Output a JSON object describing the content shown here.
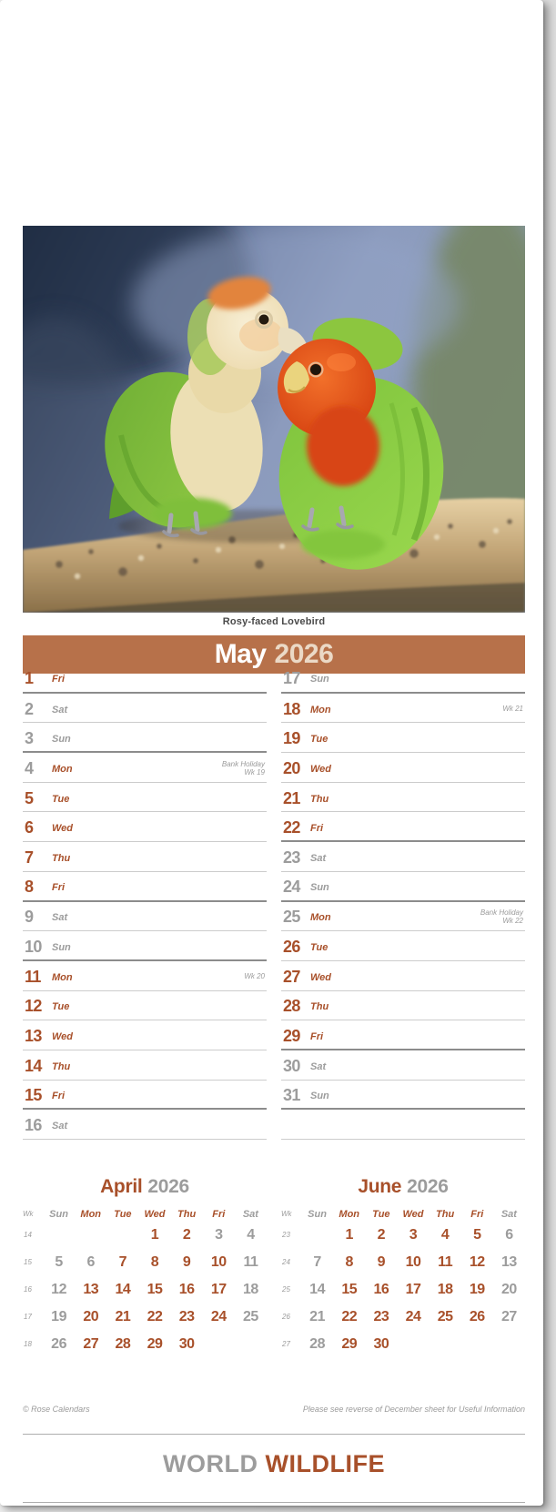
{
  "photo": {
    "caption": "Rosy-faced Lovebird"
  },
  "header": {
    "month": "May",
    "year": "2026"
  },
  "colors": {
    "accent": "#A8502A",
    "header_bar": "#B7714A",
    "header_year": "#EBD9C6",
    "weekend_gray": "#9C9C9C",
    "rule_light": "#CCCCCC",
    "rule_strong": "#8C8C8C"
  },
  "main_calendar": {
    "columns": [
      {
        "rows": [
          {
            "num": "1",
            "dow": "Fri",
            "type": "wd",
            "strong": true,
            "notes": []
          },
          {
            "num": "2",
            "dow": "Sat",
            "type": "we",
            "strong": false,
            "notes": []
          },
          {
            "num": "3",
            "dow": "Sun",
            "type": "we",
            "strong": true,
            "notes": []
          },
          {
            "num": "4",
            "dow": "Mon",
            "type": "bh",
            "strong": false,
            "notes": [
              "Bank Holiday",
              "Wk 19"
            ]
          },
          {
            "num": "5",
            "dow": "Tue",
            "type": "wd",
            "strong": false,
            "notes": []
          },
          {
            "num": "6",
            "dow": "Wed",
            "type": "wd",
            "strong": false,
            "notes": []
          },
          {
            "num": "7",
            "dow": "Thu",
            "type": "wd",
            "strong": false,
            "notes": []
          },
          {
            "num": "8",
            "dow": "Fri",
            "type": "wd",
            "strong": true,
            "notes": []
          },
          {
            "num": "9",
            "dow": "Sat",
            "type": "we",
            "strong": false,
            "notes": []
          },
          {
            "num": "10",
            "dow": "Sun",
            "type": "we",
            "strong": true,
            "notes": []
          },
          {
            "num": "11",
            "dow": "Mon",
            "type": "wd",
            "strong": false,
            "notes": [
              "Wk 20"
            ]
          },
          {
            "num": "12",
            "dow": "Tue",
            "type": "wd",
            "strong": false,
            "notes": []
          },
          {
            "num": "13",
            "dow": "Wed",
            "type": "wd",
            "strong": false,
            "notes": []
          },
          {
            "num": "14",
            "dow": "Thu",
            "type": "wd",
            "strong": false,
            "notes": []
          },
          {
            "num": "15",
            "dow": "Fri",
            "type": "wd",
            "strong": true,
            "notes": []
          },
          {
            "num": "16",
            "dow": "Sat",
            "type": "we",
            "strong": false,
            "notes": []
          }
        ]
      },
      {
        "rows": [
          {
            "num": "17",
            "dow": "Sun",
            "type": "we",
            "strong": true,
            "notes": []
          },
          {
            "num": "18",
            "dow": "Mon",
            "type": "wd",
            "strong": false,
            "notes": [
              "Wk 21"
            ]
          },
          {
            "num": "19",
            "dow": "Tue",
            "type": "wd",
            "strong": false,
            "notes": []
          },
          {
            "num": "20",
            "dow": "Wed",
            "type": "wd",
            "strong": false,
            "notes": []
          },
          {
            "num": "21",
            "dow": "Thu",
            "type": "wd",
            "strong": false,
            "notes": []
          },
          {
            "num": "22",
            "dow": "Fri",
            "type": "wd",
            "strong": true,
            "notes": []
          },
          {
            "num": "23",
            "dow": "Sat",
            "type": "we",
            "strong": false,
            "notes": []
          },
          {
            "num": "24",
            "dow": "Sun",
            "type": "we",
            "strong": true,
            "notes": []
          },
          {
            "num": "25",
            "dow": "Mon",
            "type": "bh",
            "strong": false,
            "notes": [
              "Bank Holiday",
              "Wk 22"
            ]
          },
          {
            "num": "26",
            "dow": "Tue",
            "type": "wd",
            "strong": false,
            "notes": []
          },
          {
            "num": "27",
            "dow": "Wed",
            "type": "wd",
            "strong": false,
            "notes": []
          },
          {
            "num": "28",
            "dow": "Thu",
            "type": "wd",
            "strong": false,
            "notes": []
          },
          {
            "num": "29",
            "dow": "Fri",
            "type": "wd",
            "strong": true,
            "notes": []
          },
          {
            "num": "30",
            "dow": "Sat",
            "type": "we",
            "strong": false,
            "notes": []
          },
          {
            "num": "31",
            "dow": "Sun",
            "type": "we",
            "strong": true,
            "notes": []
          },
          {
            "num": "",
            "dow": "",
            "type": "empty",
            "strong": false,
            "notes": []
          }
        ]
      }
    ]
  },
  "mini_calendars": [
    {
      "month": "April",
      "year": "2026",
      "wk_label": "Wk",
      "dow": [
        {
          "label": "Sun",
          "type": "we"
        },
        {
          "label": "Mon",
          "type": "wd"
        },
        {
          "label": "Tue",
          "type": "wd"
        },
        {
          "label": "Wed",
          "type": "wd"
        },
        {
          "label": "Thu",
          "type": "wd"
        },
        {
          "label": "Fri",
          "type": "wd"
        },
        {
          "label": "Sat",
          "type": "we"
        }
      ],
      "weeks": [
        {
          "wk": "14",
          "days": [
            {
              "d": "",
              "t": "x"
            },
            {
              "d": "",
              "t": "x"
            },
            {
              "d": "",
              "t": "x"
            },
            {
              "d": "1",
              "t": "wd"
            },
            {
              "d": "2",
              "t": "wd"
            },
            {
              "d": "3",
              "t": "bh"
            },
            {
              "d": "4",
              "t": "we"
            }
          ]
        },
        {
          "wk": "15",
          "days": [
            {
              "d": "5",
              "t": "we"
            },
            {
              "d": "6",
              "t": "bh"
            },
            {
              "d": "7",
              "t": "wd"
            },
            {
              "d": "8",
              "t": "wd"
            },
            {
              "d": "9",
              "t": "wd"
            },
            {
              "d": "10",
              "t": "wd"
            },
            {
              "d": "11",
              "t": "we"
            }
          ]
        },
        {
          "wk": "16",
          "days": [
            {
              "d": "12",
              "t": "we"
            },
            {
              "d": "13",
              "t": "wd"
            },
            {
              "d": "14",
              "t": "wd"
            },
            {
              "d": "15",
              "t": "wd"
            },
            {
              "d": "16",
              "t": "wd"
            },
            {
              "d": "17",
              "t": "wd"
            },
            {
              "d": "18",
              "t": "we"
            }
          ]
        },
        {
          "wk": "17",
          "days": [
            {
              "d": "19",
              "t": "we"
            },
            {
              "d": "20",
              "t": "wd"
            },
            {
              "d": "21",
              "t": "wd"
            },
            {
              "d": "22",
              "t": "wd"
            },
            {
              "d": "23",
              "t": "wd"
            },
            {
              "d": "24",
              "t": "wd"
            },
            {
              "d": "25",
              "t": "we"
            }
          ]
        },
        {
          "wk": "18",
          "days": [
            {
              "d": "26",
              "t": "we"
            },
            {
              "d": "27",
              "t": "wd"
            },
            {
              "d": "28",
              "t": "wd"
            },
            {
              "d": "29",
              "t": "wd"
            },
            {
              "d": "30",
              "t": "wd"
            },
            {
              "d": "",
              "t": "x"
            },
            {
              "d": "",
              "t": "x"
            }
          ]
        }
      ]
    },
    {
      "month": "June",
      "year": "2026",
      "wk_label": "Wk",
      "dow": [
        {
          "label": "Sun",
          "type": "we"
        },
        {
          "label": "Mon",
          "type": "wd"
        },
        {
          "label": "Tue",
          "type": "wd"
        },
        {
          "label": "Wed",
          "type": "wd"
        },
        {
          "label": "Thu",
          "type": "wd"
        },
        {
          "label": "Fri",
          "type": "wd"
        },
        {
          "label": "Sat",
          "type": "we"
        }
      ],
      "weeks": [
        {
          "wk": "23",
          "days": [
            {
              "d": "",
              "t": "x"
            },
            {
              "d": "1",
              "t": "wd"
            },
            {
              "d": "2",
              "t": "wd"
            },
            {
              "d": "3",
              "t": "wd"
            },
            {
              "d": "4",
              "t": "wd"
            },
            {
              "d": "5",
              "t": "wd"
            },
            {
              "d": "6",
              "t": "we"
            }
          ]
        },
        {
          "wk": "24",
          "days": [
            {
              "d": "7",
              "t": "we"
            },
            {
              "d": "8",
              "t": "wd"
            },
            {
              "d": "9",
              "t": "wd"
            },
            {
              "d": "10",
              "t": "wd"
            },
            {
              "d": "11",
              "t": "wd"
            },
            {
              "d": "12",
              "t": "wd"
            },
            {
              "d": "13",
              "t": "we"
            }
          ]
        },
        {
          "wk": "25",
          "days": [
            {
              "d": "14",
              "t": "we"
            },
            {
              "d": "15",
              "t": "wd"
            },
            {
              "d": "16",
              "t": "wd"
            },
            {
              "d": "17",
              "t": "wd"
            },
            {
              "d": "18",
              "t": "wd"
            },
            {
              "d": "19",
              "t": "wd"
            },
            {
              "d": "20",
              "t": "we"
            }
          ]
        },
        {
          "wk": "26",
          "days": [
            {
              "d": "21",
              "t": "we"
            },
            {
              "d": "22",
              "t": "wd"
            },
            {
              "d": "23",
              "t": "wd"
            },
            {
              "d": "24",
              "t": "wd"
            },
            {
              "d": "25",
              "t": "wd"
            },
            {
              "d": "26",
              "t": "wd"
            },
            {
              "d": "27",
              "t": "we"
            }
          ]
        },
        {
          "wk": "27",
          "days": [
            {
              "d": "28",
              "t": "we"
            },
            {
              "d": "29",
              "t": "wd"
            },
            {
              "d": "30",
              "t": "wd"
            },
            {
              "d": "",
              "t": "x"
            },
            {
              "d": "",
              "t": "x"
            },
            {
              "d": "",
              "t": "x"
            },
            {
              "d": "",
              "t": "x"
            }
          ]
        }
      ]
    }
  ],
  "footer": {
    "copyright": "© Rose Calendars",
    "note": "Please see reverse of December sheet for Useful Information",
    "brand_word1": "WORLD",
    "brand_word2": "WILDLIFE"
  }
}
